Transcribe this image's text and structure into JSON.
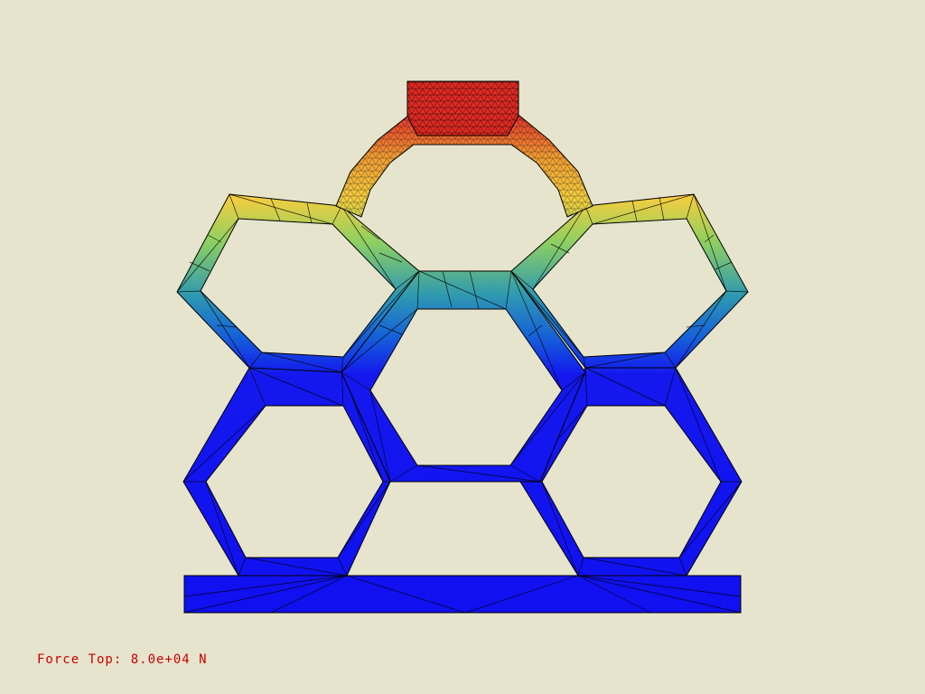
{
  "caption": {
    "text": "Force Top: 8.0e+04 N",
    "color": "#cc0000"
  },
  "colors": {
    "background": "#e6e4cd",
    "mesh_edge": "#000000",
    "colormap": [
      "#1010f0",
      "#1560d8",
      "#2f9ab0",
      "#8fd060",
      "#f2cd40",
      "#e23a2a"
    ]
  },
  "model": {
    "description_name": "hexagonal lattice FE model",
    "load_magnitude_label": "8.0e+04 N"
  }
}
